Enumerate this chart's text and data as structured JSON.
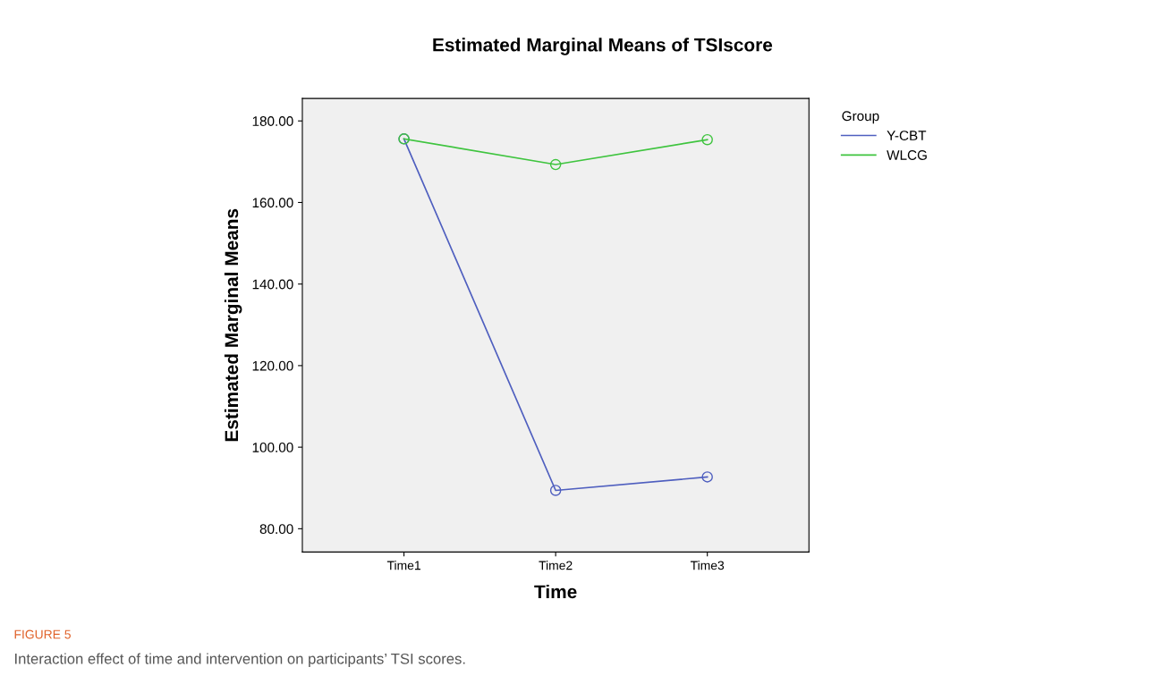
{
  "chart_data": {
    "type": "line",
    "title": "Estimated Marginal Means of TSIscore",
    "xlabel": "Time",
    "ylabel": "Estimated Marginal Means",
    "categories": [
      "Time1",
      "Time2",
      "Time3"
    ],
    "series": [
      {
        "name": "Y-CBT",
        "color": "#4f5fbf",
        "values": [
          175.6,
          89.4,
          92.7
        ]
      },
      {
        "name": "WLCG",
        "color": "#3fc43f",
        "values": [
          175.6,
          169.3,
          175.4
        ]
      }
    ],
    "legend_title": "Group",
    "legend": "top right",
    "marker": "circle",
    "line_style": "solid",
    "grid": false,
    "ylim": [
      74.3,
      185.5
    ],
    "yticks": [
      {
        "value": 80,
        "label": "80.00"
      },
      {
        "value": 100,
        "label": "100.00"
      },
      {
        "value": 120,
        "label": "120.00"
      },
      {
        "value": 140,
        "label": "140.00"
      },
      {
        "value": 160,
        "label": "160.00"
      },
      {
        "value": 180,
        "label": "180.00"
      }
    ],
    "annotations": [
      "FIGURE 5",
      "Interaction effect of time and intervention on participants’ TSI scores."
    ]
  }
}
